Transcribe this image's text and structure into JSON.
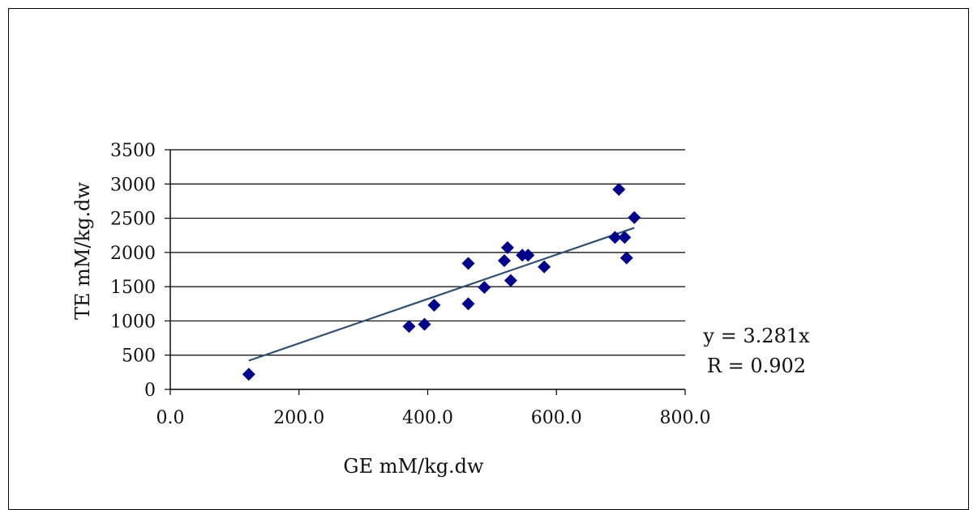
{
  "chart_data": {
    "type": "scatter",
    "title": "",
    "xlabel": "GE mM/kg.dw",
    "ylabel": "TE mM/kg.dw",
    "xlim": [
      0,
      800
    ],
    "ylim": [
      0,
      3500
    ],
    "x_ticks": [
      0,
      200,
      400,
      600,
      800
    ],
    "x_tick_labels": [
      "0.0",
      "200.0",
      "400.0",
      "600.0",
      "800.0"
    ],
    "y_ticks": [
      0,
      500,
      1000,
      1500,
      2000,
      2500,
      3000,
      3500
    ],
    "y_tick_labels": [
      "0",
      "500",
      "1000",
      "1500",
      "2000",
      "2500",
      "3000",
      "3500"
    ],
    "grid": "horizontal",
    "marker": "diamond",
    "colors": {
      "points": "#00008b",
      "trendline": "#2f4f6f"
    },
    "series": [
      {
        "points": [
          {
            "x": 122,
            "y": 220
          },
          {
            "x": 371,
            "y": 920
          },
          {
            "x": 395,
            "y": 950
          },
          {
            "x": 410,
            "y": 1230
          },
          {
            "x": 463,
            "y": 1250
          },
          {
            "x": 463,
            "y": 1840
          },
          {
            "x": 488,
            "y": 1490
          },
          {
            "x": 519,
            "y": 1880
          },
          {
            "x": 524,
            "y": 2070
          },
          {
            "x": 529,
            "y": 1590
          },
          {
            "x": 547,
            "y": 1960
          },
          {
            "x": 556,
            "y": 1960
          },
          {
            "x": 581,
            "y": 1790
          },
          {
            "x": 691,
            "y": 2220
          },
          {
            "x": 697,
            "y": 2920
          },
          {
            "x": 706,
            "y": 2220
          },
          {
            "x": 709,
            "y": 1920
          },
          {
            "x": 721,
            "y": 2510
          }
        ]
      }
    ],
    "trendline": {
      "type": "linear",
      "x_range": [
        122,
        721
      ],
      "y_range": [
        420,
        2360
      ],
      "annotation": [
        "y = 3.281x",
        "R = 0.902"
      ]
    }
  }
}
